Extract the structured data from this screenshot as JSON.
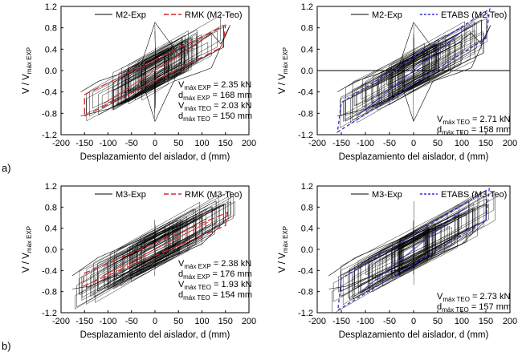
{
  "figure": {
    "row_labels": [
      "a)",
      "b)"
    ]
  },
  "chart_data": [
    {
      "type": "line",
      "title": "",
      "xlabel": "Desplazamiento del aislador, d (mm)",
      "ylabel": {
        "main": "V / V",
        "sub": "máx EXP"
      },
      "xlim": [
        -200,
        200
      ],
      "ylim": [
        -1.2,
        1.2
      ],
      "xticks": [
        -200,
        -150,
        -100,
        -50,
        0,
        50,
        100,
        150,
        200
      ],
      "yticks": [
        -1.2,
        -0.8,
        -0.4,
        0.0,
        0.4,
        0.8,
        1.2
      ],
      "grid": false,
      "legend_position": "top",
      "series": [
        {
          "name": "M2-Exp",
          "style": "solid",
          "color": "#000000",
          "envelope": {
            "x": [
              -158,
              -100,
              -60,
              -20,
              0,
              40,
              90,
              120,
              160,
              140,
              120,
              90,
              50,
              0,
              -30,
              -70,
              -120,
              -158
            ],
            "y": [
              -0.85,
              -0.72,
              -0.55,
              -0.4,
              -0.95,
              -0.2,
              -0.05,
              0.05,
              0.85,
              0.5,
              0.7,
              0.5,
              0.3,
              0.9,
              0.1,
              -0.05,
              -0.2,
              -0.4
            ]
          }
        },
        {
          "name": "RMK (M2-Teo)",
          "style": "dashed",
          "color": "#d62728",
          "loop": {
            "x": [
              -150,
              145,
              150,
              -150
            ],
            "y": [
              -0.85,
              0.45,
              0.85,
              -0.45
            ]
          }
        }
      ],
      "annotations": [
        {
          "var": "V",
          "sub": "máx EXP",
          "value": " = 2.35 kN"
        },
        {
          "var": "d",
          "sub": "máx EXP",
          "value": " = 168 mm"
        },
        {
          "var": "V",
          "sub": "máx TEO",
          "value": " = 2.03 kN"
        },
        {
          "var": "d",
          "sub": "máx TEO",
          "value": " = 150 mm"
        }
      ]
    },
    {
      "type": "line",
      "title": "",
      "xlabel": "Desplazamiento del aislador, d (mm)",
      "ylabel": {
        "main": "V / V",
        "sub": "máx EXP"
      },
      "xlim": [
        -200,
        200
      ],
      "ylim": [
        -1.2,
        1.2
      ],
      "xticks": [
        -200,
        -150,
        -100,
        -50,
        0,
        50,
        100,
        150,
        200
      ],
      "yticks": [
        -1.2,
        -0.8,
        -0.4,
        0.0,
        0.4,
        0.8,
        1.2
      ],
      "grid": false,
      "zero_line": true,
      "legend_position": "top",
      "series": [
        {
          "name": "M2-Exp",
          "style": "solid",
          "color": "#000000",
          "envelope": {
            "x": [
              -158,
              -100,
              -60,
              -20,
              0,
              40,
              90,
              120,
              160,
              140,
              120,
              90,
              50,
              0,
              -30,
              -70,
              -120,
              -158
            ],
            "y": [
              -0.85,
              -0.72,
              -0.55,
              -0.4,
              -0.95,
              -0.2,
              -0.05,
              0.05,
              0.85,
              0.5,
              0.7,
              0.5,
              0.3,
              0.9,
              0.1,
              -0.05,
              -0.2,
              -0.4
            ]
          }
        },
        {
          "name": "ETABS (M2-Teo)",
          "style": "dashed",
          "color": "#3333cc",
          "loop": {
            "x": [
              -158,
              150,
              158,
              -150
            ],
            "y": [
              -1.15,
              0.6,
              1.15,
              -0.6
            ]
          }
        }
      ],
      "annotations": [
        {
          "var": "V",
          "sub": "máx TEO",
          "value": " = 2.71 kN"
        },
        {
          "var": "d",
          "sub": "máx TEO",
          "value": " = 158 mm"
        }
      ]
    },
    {
      "type": "line",
      "title": "",
      "xlabel": "Desplazamiento del aislador, d (mm)",
      "ylabel": {
        "main": "V / V",
        "sub": "máx EXP"
      },
      "xlim": [
        -200,
        200
      ],
      "ylim": [
        -1.2,
        1.2
      ],
      "xticks": [
        -200,
        -150,
        -100,
        -50,
        0,
        50,
        100,
        150,
        200
      ],
      "yticks": [
        -1.2,
        -0.8,
        -0.4,
        0.0,
        0.4,
        0.8,
        1.2
      ],
      "grid": false,
      "legend_position": "top",
      "series": [
        {
          "name": "M3-Exp",
          "style": "solid",
          "color": "#000000",
          "envelope": {
            "x": [
              -176,
              -140,
              -100,
              -60,
              -20,
              20,
              60,
              100,
              150,
              150,
              120,
              80,
              40,
              0,
              -40,
              -80,
              -120,
              -176
            ],
            "y": [
              -0.75,
              -0.7,
              -0.55,
              -0.45,
              -0.35,
              -0.2,
              -0.05,
              0.1,
              0.55,
              0.85,
              0.75,
              0.55,
              0.4,
              0.3,
              0.15,
              0.0,
              -0.15,
              -0.5
            ]
          }
        },
        {
          "name": "RMK (M3-Teo)",
          "style": "dashed",
          "color": "#d62728",
          "loop": {
            "x": [
              -154,
              150,
              154,
              -150
            ],
            "y": [
              -0.7,
              0.45,
              0.7,
              -0.45
            ]
          }
        }
      ],
      "annotations": [
        {
          "var": "V",
          "sub": "máx EXP",
          "value": " = 2.38 kN"
        },
        {
          "var": "d",
          "sub": "máx EXP",
          "value": " = 176 mm"
        },
        {
          "var": "V",
          "sub": "máx TEO",
          "value": " = 1.93 kN"
        },
        {
          "var": "d",
          "sub": "máx TEO",
          "value": " = 154 mm"
        }
      ]
    },
    {
      "type": "line",
      "title": "",
      "xlabel": "Desplazamiento del aislador, d (mm)",
      "ylabel": {
        "main": "V / V",
        "sub": "máx EXP"
      },
      "xlim": [
        -200,
        200
      ],
      "ylim": [
        -1.2,
        1.2
      ],
      "xticks": [
        -200,
        -150,
        -100,
        -50,
        0,
        50,
        100,
        150,
        200
      ],
      "yticks": [
        -1.2,
        -0.8,
        -0.4,
        0.0,
        0.4,
        0.8,
        1.2
      ],
      "grid": false,
      "legend_position": "top",
      "series": [
        {
          "name": "M3-Exp",
          "style": "solid",
          "color": "#000000",
          "envelope": {
            "x": [
              -176,
              -140,
              -100,
              -60,
              -20,
              20,
              60,
              100,
              150,
              150,
              120,
              80,
              40,
              0,
              -40,
              -80,
              -120,
              -176
            ],
            "y": [
              -0.75,
              -0.7,
              -0.55,
              -0.45,
              -0.35,
              -0.2,
              -0.05,
              0.1,
              0.55,
              0.85,
              0.75,
              0.55,
              0.4,
              0.3,
              0.15,
              0.0,
              -0.15,
              -0.5
            ]
          }
        },
        {
          "name": "ETABS (M3-Teo)",
          "style": "dashed",
          "color": "#3333cc",
          "loop": {
            "x": [
              -157,
              150,
              157,
              -150
            ],
            "y": [
              -1.15,
              0.55,
              1.15,
              -0.55
            ]
          }
        }
      ],
      "annotations": [
        {
          "var": "V",
          "sub": "máx TEO",
          "value": " = 2.73 kN"
        },
        {
          "var": "d",
          "sub": "máx TEO",
          "value": " = 157 mm"
        }
      ]
    }
  ]
}
